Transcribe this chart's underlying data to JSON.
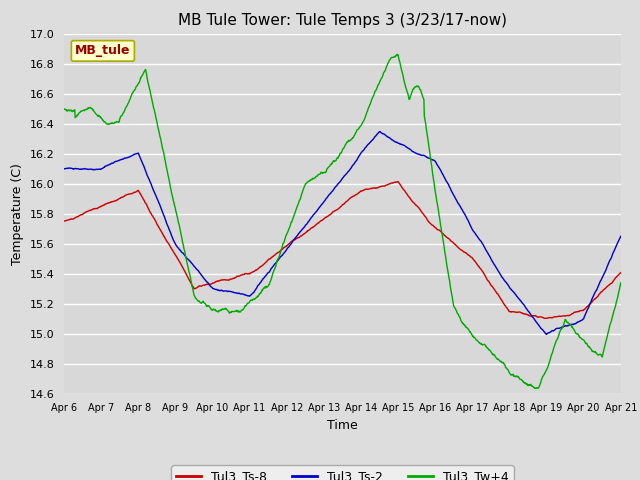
{
  "title": "MB Tule Tower: Tule Temps 3 (3/23/17-now)",
  "xlabel": "Time",
  "ylabel": "Temperature (C)",
  "ylim": [
    14.6,
    17.0
  ],
  "yticks": [
    14.6,
    14.8,
    15.0,
    15.2,
    15.4,
    15.6,
    15.8,
    16.0,
    16.2,
    16.4,
    16.6,
    16.8,
    17.0
  ],
  "xtick_labels": [
    "Apr 6",
    "Apr 7",
    "Apr 8",
    "Apr 9",
    "Apr 10",
    "Apr 11",
    "Apr 12",
    "Apr 13",
    "Apr 14",
    "Apr 15",
    "Apr 16",
    "Apr 17",
    "Apr 18",
    "Apr 19",
    "Apr 20",
    "Apr 21"
  ],
  "xlim": [
    0,
    15
  ],
  "series_colors": [
    "#cc0000",
    "#0000cc",
    "#00aa00"
  ],
  "series_labels": [
    "Tul3_Ts-8",
    "Tul3_Ts-2",
    "Tul3_Tw+4"
  ],
  "background_color": "#dddddd",
  "plot_bg_color": "#d8d8d8",
  "grid_color": "#ffffff",
  "title_fontsize": 11,
  "axis_fontsize": 9,
  "tick_fontsize": 8,
  "legend_fontsize": 9,
  "line_width": 1.0,
  "watermark_text": "MB_tule",
  "watermark_color": "#990000",
  "watermark_bg": "#ffffcc",
  "watermark_edge": "#aaaa00"
}
